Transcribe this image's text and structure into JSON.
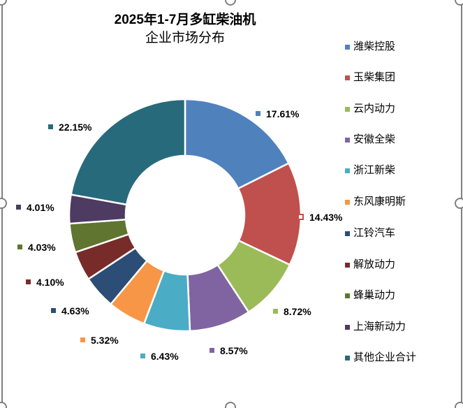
{
  "chart_data": {
    "type": "pie",
    "variant": "donut",
    "title": "2025年1-7月多缸柴油机",
    "subtitle": "企业市场分布",
    "legend_position": "right",
    "categories": [
      "潍柴控股",
      "玉柴集团",
      "云内动力",
      "安徽全柴",
      "浙江新柴",
      "东风康明斯",
      "江铃汽车",
      "解放动力",
      "蜂巢动力",
      "上海新动力",
      "其他企业合计"
    ],
    "values": [
      17.61,
      14.43,
      8.72,
      8.57,
      6.43,
      5.32,
      4.63,
      4.1,
      4.03,
      4.01,
      22.15
    ],
    "labels": [
      "17.61%",
      "14.43%",
      "8.72%",
      "8.57%",
      "6.43%",
      "5.32%",
      "4.63%",
      "4.10%",
      "4.03%",
      "4.01%",
      "22.15%"
    ],
    "colors": [
      "#4F81BD",
      "#C0504D",
      "#9BBB59",
      "#8064A2",
      "#4BACC6",
      "#F79646",
      "#2C4D75",
      "#772C2A",
      "#5F7530",
      "#4D3B62",
      "#276A7C"
    ]
  }
}
